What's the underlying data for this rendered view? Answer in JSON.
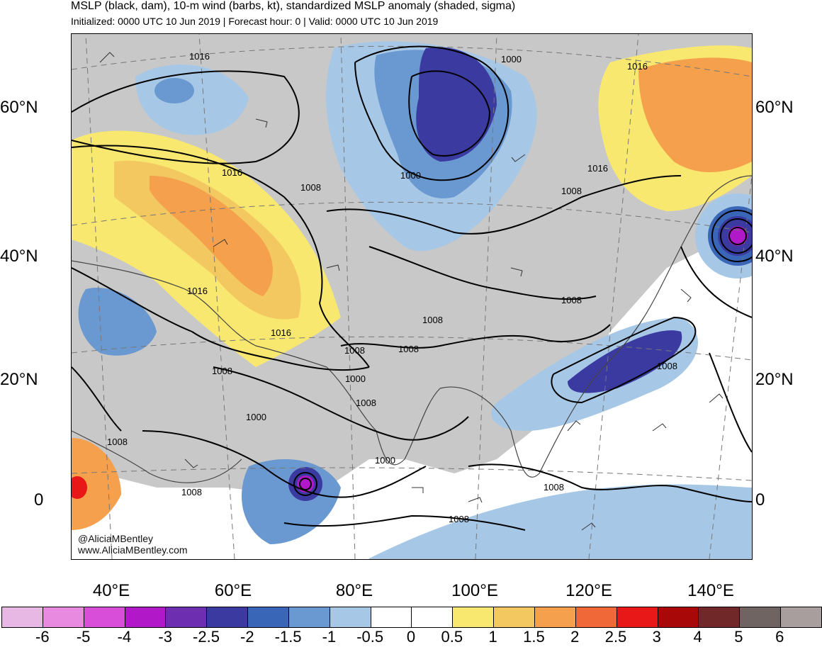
{
  "header": {
    "title": "MSLP (black, dam), 10-m wind (barbs, kt), standardized MSLP anomaly (shaded, sigma)",
    "subtitle": "Initialized: 0000 UTC 10 Jun 2019 | Forecast hour: 0 | Valid: 0000 UTC 10 Jun 2019"
  },
  "map": {
    "lat_labels": [
      "60°N",
      "40°N",
      "20°N",
      "0"
    ],
    "lon_labels": [
      "40°E",
      "60°E",
      "80°E",
      "100°E",
      "120°E",
      "140°E"
    ],
    "isobar_labels": [
      "1016",
      "1016",
      "1016",
      "1016",
      "1016",
      "1016",
      "1000",
      "1000",
      "1008",
      "1008",
      "1008",
      "1008",
      "1008",
      "1008",
      "1008",
      "1000",
      "1008",
      "1000",
      "1000",
      "1008",
      "1008",
      "1008",
      "1008",
      "1008"
    ],
    "credits": [
      "@AliciaMBentley",
      "www.AliciaMBentley.com"
    ]
  },
  "colorbar": {
    "colors": [
      "#e8b8e4",
      "#e88ae0",
      "#d84ed8",
      "#b018c8",
      "#6e2eb0",
      "#3a3aa0",
      "#3a66b8",
      "#6a98d0",
      "#a6c8e6",
      "#ffffff",
      "#ffffff",
      "#f8e870",
      "#f4c860",
      "#f4a04c",
      "#f06838",
      "#e81818",
      "#a80808",
      "#702828",
      "#706462",
      "#a89e9e"
    ],
    "labels": [
      "-6",
      "-5",
      "-4",
      "-3",
      "-2.5",
      "-2",
      "-1.5",
      "-1",
      "-0.5",
      "0",
      "0.5",
      "1",
      "1.5",
      "2",
      "2.5",
      "3",
      "4",
      "5",
      "6"
    ]
  }
}
